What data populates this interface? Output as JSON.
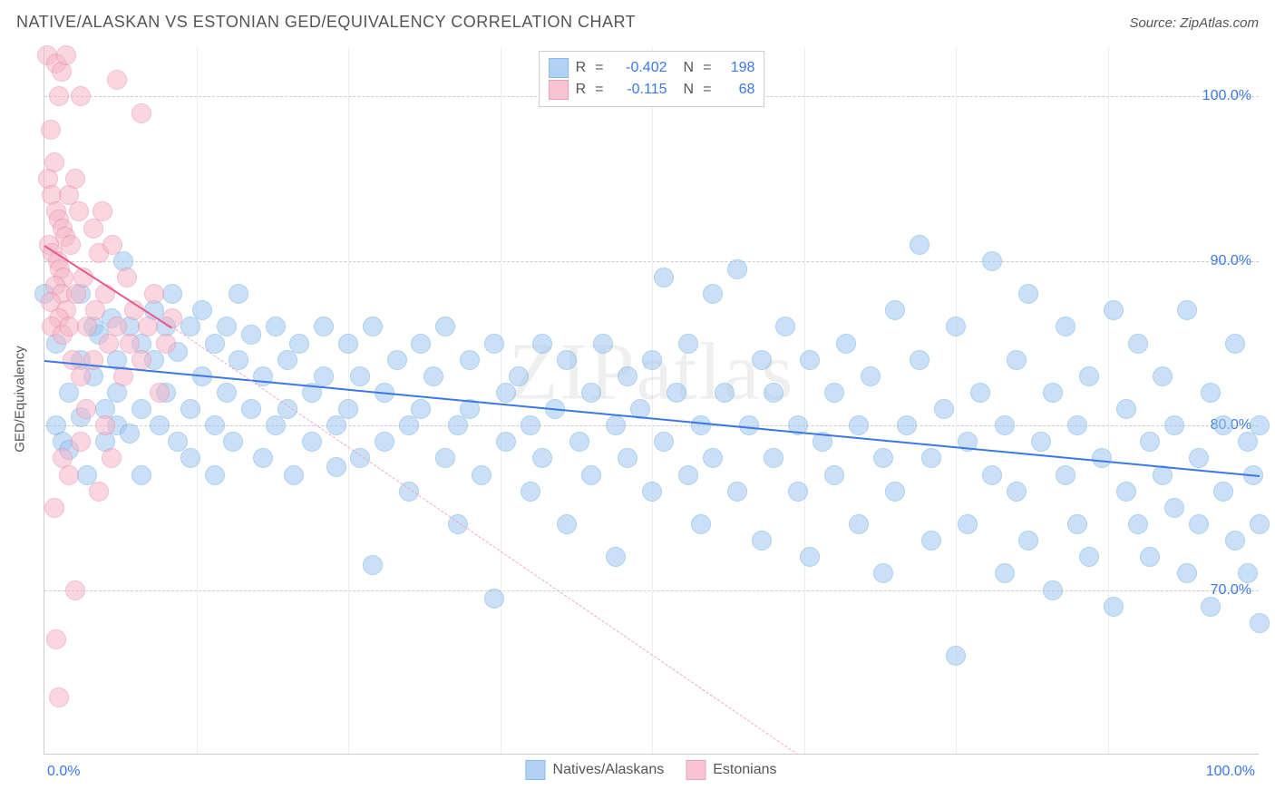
{
  "title": "NATIVE/ALASKAN VS ESTONIAN GED/EQUIVALENCY CORRELATION CHART",
  "source": "Source: ZipAtlas.com",
  "watermark": "ZIPatlas",
  "y_axis_label": "GED/Equivalency",
  "chart": {
    "type": "scatter",
    "background_color": "#ffffff",
    "grid_color": "#cccccc",
    "xlim": [
      0,
      100
    ],
    "ylim": [
      60,
      103
    ],
    "y_ticks": [
      70,
      80,
      90,
      100
    ],
    "y_tick_labels": [
      "70.0%",
      "80.0%",
      "90.0%",
      "100.0%"
    ],
    "x_tick_minor_step": 12.5,
    "x_tick_labels": {
      "min": "0.0%",
      "max": "100.0%"
    },
    "marker_radius": 11,
    "marker_border_width": 1.5,
    "series": [
      {
        "name": "Natives/Alaskans",
        "fill": "#9ec8f2",
        "fill_opacity": 0.55,
        "stroke": "#6ea8e0",
        "trend": {
          "x1": 0,
          "y1": 84.0,
          "x2": 100,
          "y2": 77.0,
          "color": "#3b78e7",
          "width": 2.5,
          "dash": "solid"
        },
        "trend_extra": null,
        "legend_top": {
          "R": "-0.402",
          "N": "198"
        },
        "points": [
          [
            0,
            88
          ],
          [
            1,
            85
          ],
          [
            1,
            80
          ],
          [
            1.5,
            79
          ],
          [
            2,
            82
          ],
          [
            2,
            78.5
          ],
          [
            3,
            88
          ],
          [
            3,
            84
          ],
          [
            3,
            80.5
          ],
          [
            3.5,
            77
          ],
          [
            4,
            86
          ],
          [
            4,
            83
          ],
          [
            4.5,
            85.5
          ],
          [
            5,
            81
          ],
          [
            5,
            79
          ],
          [
            5.5,
            86.5
          ],
          [
            6,
            84
          ],
          [
            6,
            82
          ],
          [
            6,
            80
          ],
          [
            6.5,
            90
          ],
          [
            7,
            86
          ],
          [
            7,
            79.5
          ],
          [
            8,
            85
          ],
          [
            8,
            81
          ],
          [
            8,
            77
          ],
          [
            9,
            87
          ],
          [
            9,
            84
          ],
          [
            9.5,
            80
          ],
          [
            10,
            86
          ],
          [
            10,
            82
          ],
          [
            10.5,
            88
          ],
          [
            11,
            79
          ],
          [
            11,
            84.5
          ],
          [
            12,
            86
          ],
          [
            12,
            81
          ],
          [
            12,
            78
          ],
          [
            13,
            87
          ],
          [
            13,
            83
          ],
          [
            14,
            85
          ],
          [
            14,
            80
          ],
          [
            14,
            77
          ],
          [
            15,
            86
          ],
          [
            15,
            82
          ],
          [
            15.5,
            79
          ],
          [
            16,
            84
          ],
          [
            16,
            88
          ],
          [
            17,
            81
          ],
          [
            17,
            85.5
          ],
          [
            18,
            83
          ],
          [
            18,
            78
          ],
          [
            19,
            86
          ],
          [
            19,
            80
          ],
          [
            20,
            84
          ],
          [
            20,
            81
          ],
          [
            20.5,
            77
          ],
          [
            21,
            85
          ],
          [
            22,
            82
          ],
          [
            22,
            79
          ],
          [
            23,
            86
          ],
          [
            23,
            83
          ],
          [
            24,
            80
          ],
          [
            24,
            77.5
          ],
          [
            25,
            85
          ],
          [
            25,
            81
          ],
          [
            26,
            83
          ],
          [
            26,
            78
          ],
          [
            27,
            71.5
          ],
          [
            27,
            86
          ],
          [
            28,
            82
          ],
          [
            28,
            79
          ],
          [
            29,
            84
          ],
          [
            30,
            80
          ],
          [
            30,
            76
          ],
          [
            31,
            85
          ],
          [
            31,
            81
          ],
          [
            32,
            83
          ],
          [
            33,
            78
          ],
          [
            33,
            86
          ],
          [
            34,
            80
          ],
          [
            34,
            74
          ],
          [
            35,
            84
          ],
          [
            35,
            81
          ],
          [
            36,
            77
          ],
          [
            37,
            85
          ],
          [
            37,
            69.5
          ],
          [
            38,
            82
          ],
          [
            38,
            79
          ],
          [
            39,
            83
          ],
          [
            40,
            80
          ],
          [
            40,
            76
          ],
          [
            41,
            85
          ],
          [
            41,
            78
          ],
          [
            42,
            81
          ],
          [
            43,
            84
          ],
          [
            43,
            74
          ],
          [
            44,
            79
          ],
          [
            45,
            82
          ],
          [
            45,
            77
          ],
          [
            46,
            85
          ],
          [
            47,
            80
          ],
          [
            47,
            72
          ],
          [
            48,
            83
          ],
          [
            48,
            78
          ],
          [
            49,
            81
          ],
          [
            50,
            84
          ],
          [
            50,
            76
          ],
          [
            51,
            89
          ],
          [
            51,
            79
          ],
          [
            52,
            82
          ],
          [
            53,
            77
          ],
          [
            53,
            85
          ],
          [
            54,
            80
          ],
          [
            54,
            74
          ],
          [
            55,
            88
          ],
          [
            55,
            78
          ],
          [
            56,
            82
          ],
          [
            57,
            76
          ],
          [
            57,
            89.5
          ],
          [
            58,
            80
          ],
          [
            59,
            84
          ],
          [
            59,
            73
          ],
          [
            60,
            78
          ],
          [
            60,
            82
          ],
          [
            61,
            86
          ],
          [
            62,
            76
          ],
          [
            62,
            80
          ],
          [
            63,
            84
          ],
          [
            63,
            72
          ],
          [
            64,
            79
          ],
          [
            65,
            82
          ],
          [
            65,
            77
          ],
          [
            66,
            85
          ],
          [
            67,
            74
          ],
          [
            67,
            80
          ],
          [
            68,
            83
          ],
          [
            69,
            78
          ],
          [
            69,
            71
          ],
          [
            70,
            87
          ],
          [
            70,
            76
          ],
          [
            71,
            80
          ],
          [
            72,
            84
          ],
          [
            72,
            91
          ],
          [
            73,
            78
          ],
          [
            73,
            73
          ],
          [
            74,
            81
          ],
          [
            75,
            86
          ],
          [
            75,
            66
          ],
          [
            76,
            79
          ],
          [
            76,
            74
          ],
          [
            77,
            82
          ],
          [
            78,
            77
          ],
          [
            78,
            90
          ],
          [
            79,
            71
          ],
          [
            79,
            80
          ],
          [
            80,
            84
          ],
          [
            80,
            76
          ],
          [
            81,
            88
          ],
          [
            81,
            73
          ],
          [
            82,
            79
          ],
          [
            83,
            82
          ],
          [
            83,
            70
          ],
          [
            84,
            86
          ],
          [
            84,
            77
          ],
          [
            85,
            74
          ],
          [
            85,
            80
          ],
          [
            86,
            83
          ],
          [
            86,
            72
          ],
          [
            87,
            78
          ],
          [
            88,
            87
          ],
          [
            88,
            69
          ],
          [
            89,
            76
          ],
          [
            89,
            81
          ],
          [
            90,
            74
          ],
          [
            90,
            85
          ],
          [
            91,
            79
          ],
          [
            91,
            72
          ],
          [
            92,
            83
          ],
          [
            92,
            77
          ],
          [
            93,
            75
          ],
          [
            93,
            80
          ],
          [
            94,
            87
          ],
          [
            94,
            71
          ],
          [
            95,
            78
          ],
          [
            95,
            74
          ],
          [
            96,
            82
          ],
          [
            96,
            69
          ],
          [
            97,
            76
          ],
          [
            97,
            80
          ],
          [
            98,
            73
          ],
          [
            98,
            85
          ],
          [
            99,
            79
          ],
          [
            99,
            71
          ],
          [
            99.5,
            77
          ],
          [
            100,
            74
          ],
          [
            100,
            80
          ],
          [
            100,
            68
          ]
        ]
      },
      {
        "name": "Estonians",
        "fill": "#f5b6c8",
        "fill_opacity": 0.55,
        "stroke": "#e88aa8",
        "trend": {
          "x1": 0,
          "y1": 91.0,
          "x2": 10.5,
          "y2": 86.0,
          "color": "#e75a8f",
          "width": 2,
          "dash": "solid"
        },
        "trend_extra": {
          "x1": 10.5,
          "y1": 86.0,
          "x2": 62,
          "y2": 60.0,
          "color": "#f0a7bf",
          "width": 1.2,
          "dash": "dashed"
        },
        "legend_top": {
          "R": "-0.115",
          "N": "68"
        },
        "points": [
          [
            0.2,
            102.5
          ],
          [
            0.5,
            98
          ],
          [
            0.8,
            96
          ],
          [
            0.3,
            95
          ],
          [
            0.6,
            94
          ],
          [
            1,
            102
          ],
          [
            1.2,
            100
          ],
          [
            1.4,
            101.5
          ],
          [
            1.8,
            102.5
          ],
          [
            1,
            93
          ],
          [
            1.2,
            92.5
          ],
          [
            1.5,
            92
          ],
          [
            1.7,
            91.5
          ],
          [
            0.4,
            91
          ],
          [
            0.7,
            90.5
          ],
          [
            1.1,
            90
          ],
          [
            1.3,
            89.5
          ],
          [
            1.6,
            89
          ],
          [
            0.9,
            88.5
          ],
          [
            1.4,
            88
          ],
          [
            0.5,
            87.5
          ],
          [
            1.8,
            87
          ],
          [
            1.2,
            86.5
          ],
          [
            0.6,
            86
          ],
          [
            1.5,
            85.5
          ],
          [
            2,
            94
          ],
          [
            2.2,
            91
          ],
          [
            2.5,
            95
          ],
          [
            2.8,
            93
          ],
          [
            2,
            86
          ],
          [
            2.3,
            84
          ],
          [
            2.6,
            88
          ],
          [
            3,
            100
          ],
          [
            3.2,
            89
          ],
          [
            3.5,
            86
          ],
          [
            3,
            83
          ],
          [
            3.4,
            81
          ],
          [
            4,
            92
          ],
          [
            4.2,
            87
          ],
          [
            4.5,
            90.5
          ],
          [
            4,
            84
          ],
          [
            4.8,
            93
          ],
          [
            5,
            88
          ],
          [
            5.3,
            85
          ],
          [
            5.6,
            91
          ],
          [
            5,
            80
          ],
          [
            6,
            86
          ],
          [
            6,
            101
          ],
          [
            6.5,
            83
          ],
          [
            6.8,
            89
          ],
          [
            7,
            85
          ],
          [
            7.4,
            87
          ],
          [
            8,
            99
          ],
          [
            8,
            84
          ],
          [
            8.5,
            86
          ],
          [
            9,
            88
          ],
          [
            9.5,
            82
          ],
          [
            10,
            85
          ],
          [
            10.5,
            86.5
          ],
          [
            1.5,
            78
          ],
          [
            2,
            77
          ],
          [
            0.8,
            75
          ],
          [
            2.5,
            70
          ],
          [
            1,
            67
          ],
          [
            1.2,
            63.5
          ],
          [
            3,
            79
          ],
          [
            4.5,
            76
          ],
          [
            5.5,
            78
          ]
        ]
      }
    ]
  },
  "legend_bottom": [
    {
      "label": "Natives/Alaskans",
      "fill": "#9ec8f2",
      "stroke": "#6ea8e0"
    },
    {
      "label": "Estonians",
      "fill": "#f5b6c8",
      "stroke": "#e88aa8"
    }
  ]
}
